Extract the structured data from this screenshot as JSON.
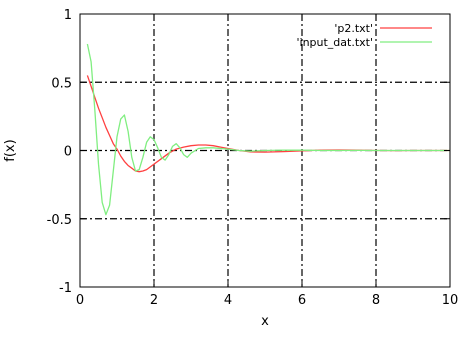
{
  "chart_data": {
    "type": "line",
    "title": "",
    "xlabel": "x",
    "ylabel": "f(x)",
    "xlim": [
      0,
      10
    ],
    "ylim": [
      -1,
      1
    ],
    "x_ticks": [
      0,
      2,
      4,
      6,
      8,
      10
    ],
    "y_ticks": [
      -1,
      -0.5,
      0,
      0.5,
      1
    ],
    "x_tick_labels": [
      "0",
      "2",
      "4",
      "6",
      "8",
      "10"
    ],
    "y_tick_labels": [
      "-1",
      "-0.5",
      "0",
      "0.5",
      "1"
    ],
    "grid": true,
    "legend_position": "top-right",
    "series": [
      {
        "name": "'p2.txt'",
        "color": "#ff4040",
        "x": [
          0.2,
          0.3,
          0.4,
          0.5,
          0.6,
          0.7,
          0.8,
          0.9,
          1.0,
          1.1,
          1.2,
          1.3,
          1.4,
          1.5,
          1.6,
          1.7,
          1.8,
          1.9,
          2.0,
          2.2,
          2.4,
          2.6,
          2.8,
          3.0,
          3.2,
          3.4,
          3.6,
          3.8,
          4.0,
          4.3,
          4.6,
          5.0,
          5.5,
          6.0,
          6.5,
          7.0,
          7.5,
          8.0,
          8.5,
          9.0,
          9.5,
          10.0
        ],
        "y": [
          0.55,
          0.47,
          0.39,
          0.31,
          0.24,
          0.17,
          0.11,
          0.05,
          0.01,
          -0.04,
          -0.08,
          -0.11,
          -0.13,
          -0.15,
          -0.155,
          -0.15,
          -0.14,
          -0.12,
          -0.1,
          -0.06,
          -0.02,
          0.01,
          0.025,
          0.035,
          0.04,
          0.04,
          0.035,
          0.025,
          0.015,
          0.0,
          -0.01,
          -0.012,
          -0.008,
          -0.002,
          0.003,
          0.004,
          0.002,
          0.0,
          -0.001,
          0.0,
          0.0,
          0.0
        ]
      },
      {
        "name": "'input_dat.txt'",
        "color": "#80ee80",
        "x": [
          0.2,
          0.3,
          0.4,
          0.5,
          0.6,
          0.7,
          0.8,
          0.9,
          1.0,
          1.1,
          1.2,
          1.3,
          1.4,
          1.5,
          1.6,
          1.7,
          1.8,
          1.9,
          2.0,
          2.1,
          2.2,
          2.3,
          2.4,
          2.5,
          2.6,
          2.7,
          2.8,
          2.9,
          3.0,
          3.2,
          3.4,
          3.6,
          3.8,
          4.0,
          4.3,
          4.6,
          5.0,
          5.5,
          6.0,
          6.5,
          7.0,
          7.5,
          8.0,
          8.5,
          9.0,
          9.5,
          10.0
        ],
        "y": [
          0.78,
          0.65,
          0.3,
          -0.1,
          -0.38,
          -0.47,
          -0.4,
          -0.15,
          0.1,
          0.23,
          0.26,
          0.14,
          -0.05,
          -0.15,
          -0.14,
          -0.05,
          0.06,
          0.1,
          0.08,
          0.02,
          -0.05,
          -0.07,
          -0.03,
          0.03,
          0.05,
          0.02,
          -0.03,
          -0.05,
          -0.02,
          0.015,
          0.02,
          0.02,
          0.015,
          0.01,
          0.0,
          -0.005,
          0.0,
          0.003,
          0.002,
          0.0,
          0.0,
          0.001,
          0.0,
          0.0,
          0.0,
          0.0,
          0.0
        ]
      }
    ]
  }
}
